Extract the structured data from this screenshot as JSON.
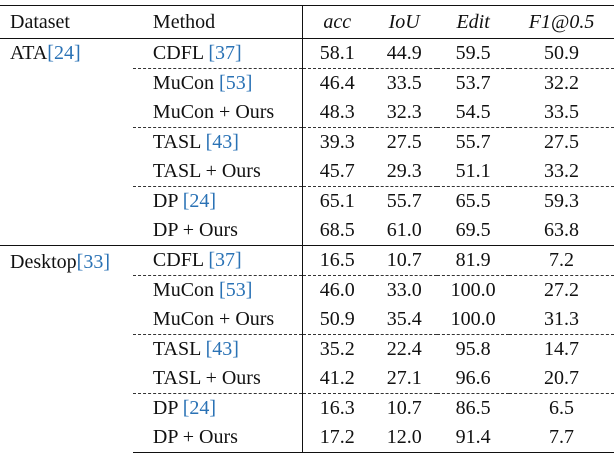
{
  "table": {
    "headers": {
      "dataset": "Dataset",
      "method": "Method",
      "acc": "acc",
      "iou": "IoU",
      "edit": "Edit",
      "f1": "F1@0.5"
    },
    "groups": [
      {
        "dataset": "ATA",
        "dataset_ref": "[24]",
        "rows": [
          {
            "method": "CDFL ",
            "ref": "[37]",
            "acc": "58.1",
            "iou": "44.9",
            "edit": "59.5",
            "f1": "50.9",
            "bold": []
          },
          {
            "method": "MuCon ",
            "ref": "[53]",
            "acc": "46.4",
            "iou": "33.5",
            "edit": "53.7",
            "f1": "32.2",
            "bold": [
              "iou"
            ]
          },
          {
            "method": "MuCon + Ours",
            "ref": "",
            "acc": "48.3",
            "iou": "32.3",
            "edit": "54.5",
            "f1": "33.5",
            "bold": [
              "acc",
              "edit",
              "f1"
            ]
          },
          {
            "method": "TASL ",
            "ref": "[43]",
            "acc": "39.3",
            "iou": "27.5",
            "edit": "55.7",
            "f1": "27.5",
            "bold": [
              "edit"
            ]
          },
          {
            "method": "TASL + Ours",
            "ref": "",
            "acc": "45.7",
            "iou": "29.3",
            "edit": "51.1",
            "f1": "33.2",
            "bold": [
              "acc",
              "iou",
              "f1"
            ]
          },
          {
            "method": "DP ",
            "ref": "[24]",
            "acc": "65.1",
            "iou": "55.7",
            "edit": "65.5",
            "f1": "59.3",
            "bold": []
          },
          {
            "method": "DP + Ours",
            "ref": "",
            "acc": "68.5",
            "iou": "61.0",
            "edit": "69.5",
            "f1": "63.8",
            "bold": [
              "acc",
              "iou",
              "edit",
              "f1"
            ]
          }
        ]
      },
      {
        "dataset": "Desktop",
        "dataset_ref": "[33]",
        "rows": [
          {
            "method": "CDFL ",
            "ref": "[37]",
            "acc": "16.5",
            "iou": "10.7",
            "edit": "81.9",
            "f1": "7.2",
            "bold": []
          },
          {
            "method": "MuCon ",
            "ref": "[53]",
            "acc": "46.0",
            "iou": "33.0",
            "edit": "100.0",
            "f1": "27.2",
            "bold": []
          },
          {
            "method": "MuCon + Ours",
            "ref": "",
            "acc": "50.9",
            "iou": "35.4",
            "edit": "100.0",
            "f1": "31.3",
            "bold": [
              "acc",
              "iou",
              "edit",
              "f1"
            ]
          },
          {
            "method": "TASL ",
            "ref": "[43]",
            "acc": "35.2",
            "iou": "22.4",
            "edit": "95.8",
            "f1": "14.7",
            "bold": []
          },
          {
            "method": "TASL + Ours",
            "ref": "",
            "acc": "41.2",
            "iou": "27.1",
            "edit": "96.6",
            "f1": "20.7",
            "bold": [
              "acc",
              "iou",
              "edit",
              "f1"
            ]
          },
          {
            "method": "DP ",
            "ref": "[24]",
            "acc": "16.3",
            "iou": "10.7",
            "edit": "86.5",
            "f1": "6.5",
            "bold": []
          },
          {
            "method": "DP + Ours",
            "ref": "",
            "acc": "17.2",
            "iou": "12.0",
            "edit": "91.4",
            "f1": "7.7",
            "bold": [
              "acc",
              "iou",
              "edit",
              "f1"
            ]
          }
        ]
      }
    ]
  }
}
